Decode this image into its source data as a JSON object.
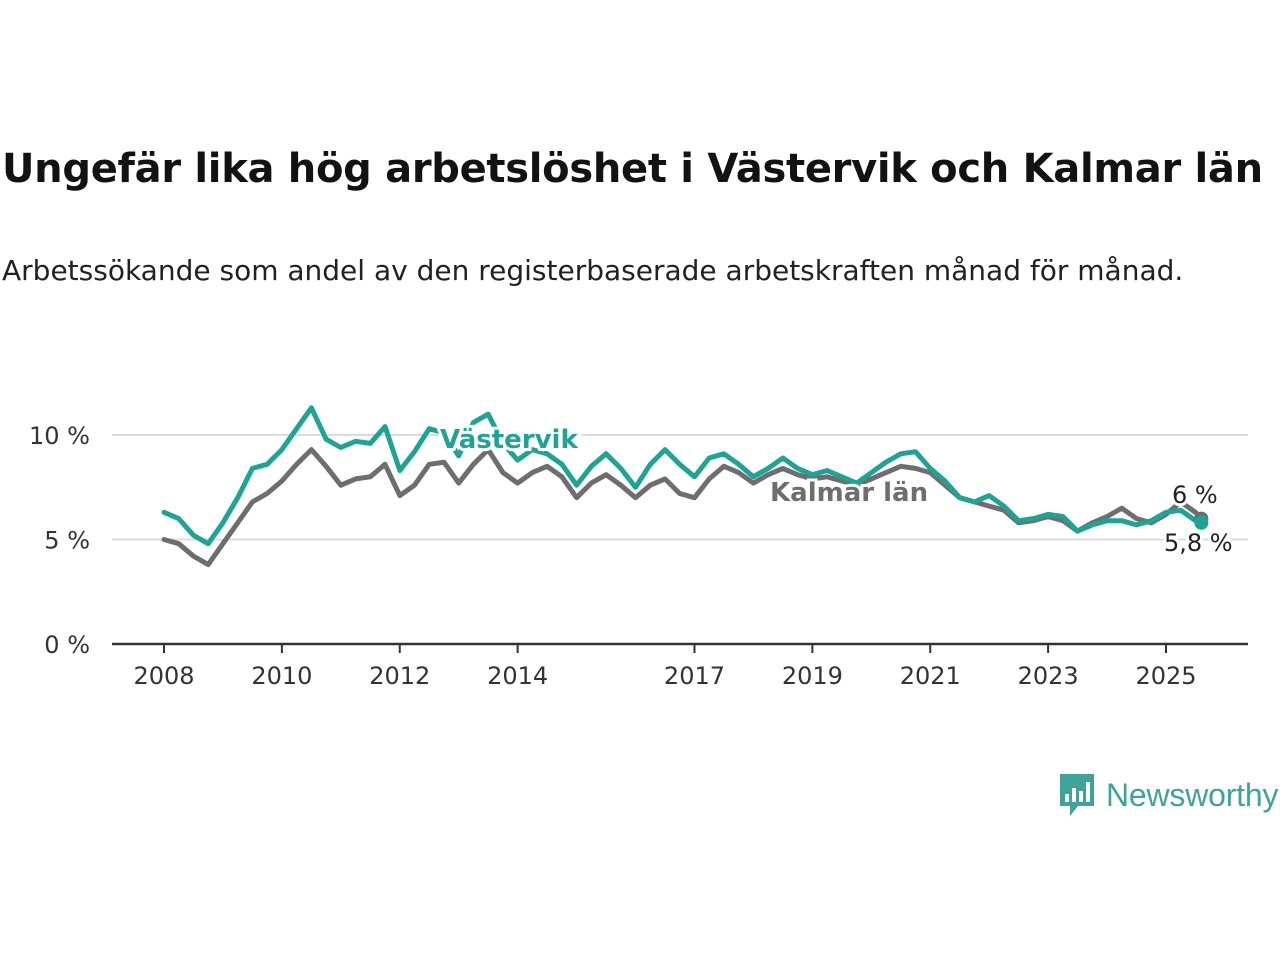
{
  "chart_data": {
    "type": "line",
    "title": "Ungefär lika hög arbetslöshet i Västervik och Kalmar län",
    "subtitle": "Arbetssökande som andel av den registerbaserade arbetskraften månad för månad.",
    "ylim": [
      0,
      12.5
    ],
    "yticks": [
      0,
      5,
      10
    ],
    "ytick_labels": [
      "0 %",
      "5 %",
      "10 %"
    ],
    "xticks": [
      2008,
      2010,
      2012,
      2014,
      2017,
      2019,
      2021,
      2023,
      2025
    ],
    "xtick_labels": [
      "2008",
      "2010",
      "2012",
      "2014",
      "2017",
      "2019",
      "2021",
      "2023",
      "2025"
    ],
    "grid": true,
    "series": [
      {
        "name": "Kalmar län",
        "color": "#6e6e6e",
        "end_label": "6 %",
        "points": [
          [
            2008.0,
            5.0
          ],
          [
            2008.25,
            4.8
          ],
          [
            2008.5,
            4.2
          ],
          [
            2008.75,
            3.8
          ],
          [
            2009.0,
            4.8
          ],
          [
            2009.25,
            5.8
          ],
          [
            2009.5,
            6.8
          ],
          [
            2009.75,
            7.2
          ],
          [
            2010.0,
            7.8
          ],
          [
            2010.25,
            8.6
          ],
          [
            2010.5,
            9.3
          ],
          [
            2010.75,
            8.5
          ],
          [
            2011.0,
            7.6
          ],
          [
            2011.25,
            7.9
          ],
          [
            2011.5,
            8.0
          ],
          [
            2011.75,
            8.6
          ],
          [
            2012.0,
            7.1
          ],
          [
            2012.25,
            7.6
          ],
          [
            2012.5,
            8.6
          ],
          [
            2012.75,
            8.7
          ],
          [
            2013.0,
            7.7
          ],
          [
            2013.25,
            8.6
          ],
          [
            2013.5,
            9.3
          ],
          [
            2013.75,
            8.2
          ],
          [
            2014.0,
            7.7
          ],
          [
            2014.25,
            8.2
          ],
          [
            2014.5,
            8.5
          ],
          [
            2014.75,
            8.0
          ],
          [
            2015.0,
            7.0
          ],
          [
            2015.25,
            7.7
          ],
          [
            2015.5,
            8.1
          ],
          [
            2015.75,
            7.6
          ],
          [
            2016.0,
            7.0
          ],
          [
            2016.25,
            7.6
          ],
          [
            2016.5,
            7.9
          ],
          [
            2016.75,
            7.2
          ],
          [
            2017.0,
            7.0
          ],
          [
            2017.25,
            7.9
          ],
          [
            2017.5,
            8.5
          ],
          [
            2017.75,
            8.2
          ],
          [
            2018.0,
            7.7
          ],
          [
            2018.25,
            8.1
          ],
          [
            2018.5,
            8.4
          ],
          [
            2018.75,
            8.1
          ],
          [
            2019.0,
            7.9
          ],
          [
            2019.25,
            8.0
          ],
          [
            2019.5,
            7.8
          ],
          [
            2019.75,
            7.6
          ],
          [
            2020.0,
            7.9
          ],
          [
            2020.25,
            8.2
          ],
          [
            2020.5,
            8.5
          ],
          [
            2020.75,
            8.4
          ],
          [
            2021.0,
            8.2
          ],
          [
            2021.25,
            7.6
          ],
          [
            2021.5,
            7.0
          ],
          [
            2021.75,
            6.8
          ],
          [
            2022.0,
            6.6
          ],
          [
            2022.25,
            6.4
          ],
          [
            2022.5,
            5.8
          ],
          [
            2022.75,
            5.9
          ],
          [
            2023.0,
            6.1
          ],
          [
            2023.25,
            5.9
          ],
          [
            2023.5,
            5.4
          ],
          [
            2023.75,
            5.8
          ],
          [
            2024.0,
            6.1
          ],
          [
            2024.25,
            6.5
          ],
          [
            2024.5,
            6.0
          ],
          [
            2024.75,
            5.8
          ],
          [
            2025.0,
            6.2
          ],
          [
            2025.25,
            6.8
          ],
          [
            2025.5,
            6.3
          ],
          [
            2025.6,
            6.0
          ]
        ]
      },
      {
        "name": "Västervik",
        "color": "#1ea394",
        "end_label": "5,8 %",
        "points": [
          [
            2008.0,
            6.3
          ],
          [
            2008.25,
            6.0
          ],
          [
            2008.5,
            5.2
          ],
          [
            2008.75,
            4.8
          ],
          [
            2009.0,
            5.8
          ],
          [
            2009.25,
            7.0
          ],
          [
            2009.5,
            8.4
          ],
          [
            2009.75,
            8.6
          ],
          [
            2010.0,
            9.3
          ],
          [
            2010.25,
            10.3
          ],
          [
            2010.5,
            11.3
          ],
          [
            2010.75,
            9.8
          ],
          [
            2011.0,
            9.4
          ],
          [
            2011.25,
            9.7
          ],
          [
            2011.5,
            9.6
          ],
          [
            2011.75,
            10.4
          ],
          [
            2012.0,
            8.3
          ],
          [
            2012.25,
            9.2
          ],
          [
            2012.5,
            10.3
          ],
          [
            2012.75,
            10.1
          ],
          [
            2013.0,
            9.0
          ],
          [
            2013.25,
            10.6
          ],
          [
            2013.5,
            11.0
          ],
          [
            2013.75,
            9.6
          ],
          [
            2014.0,
            8.8
          ],
          [
            2014.25,
            9.3
          ],
          [
            2014.5,
            9.1
          ],
          [
            2014.75,
            8.6
          ],
          [
            2015.0,
            7.6
          ],
          [
            2015.25,
            8.5
          ],
          [
            2015.5,
            9.1
          ],
          [
            2015.75,
            8.4
          ],
          [
            2016.0,
            7.5
          ],
          [
            2016.25,
            8.6
          ],
          [
            2016.5,
            9.3
          ],
          [
            2016.75,
            8.6
          ],
          [
            2017.0,
            8.0
          ],
          [
            2017.25,
            8.9
          ],
          [
            2017.5,
            9.1
          ],
          [
            2017.75,
            8.6
          ],
          [
            2018.0,
            8.0
          ],
          [
            2018.25,
            8.4
          ],
          [
            2018.5,
            8.9
          ],
          [
            2018.75,
            8.4
          ],
          [
            2019.0,
            8.1
          ],
          [
            2019.25,
            8.3
          ],
          [
            2019.5,
            8.0
          ],
          [
            2019.75,
            7.7
          ],
          [
            2020.0,
            8.2
          ],
          [
            2020.25,
            8.7
          ],
          [
            2020.5,
            9.1
          ],
          [
            2020.75,
            9.2
          ],
          [
            2021.0,
            8.4
          ],
          [
            2021.25,
            7.8
          ],
          [
            2021.5,
            7.0
          ],
          [
            2021.75,
            6.8
          ],
          [
            2022.0,
            7.1
          ],
          [
            2022.25,
            6.6
          ],
          [
            2022.5,
            5.9
          ],
          [
            2022.75,
            6.0
          ],
          [
            2023.0,
            6.2
          ],
          [
            2023.25,
            6.1
          ],
          [
            2023.5,
            5.4
          ],
          [
            2023.75,
            5.7
          ],
          [
            2024.0,
            5.9
          ],
          [
            2024.25,
            5.9
          ],
          [
            2024.5,
            5.7
          ],
          [
            2024.75,
            5.9
          ],
          [
            2025.0,
            6.3
          ],
          [
            2025.25,
            6.4
          ],
          [
            2025.5,
            5.9
          ],
          [
            2025.6,
            5.8
          ]
        ]
      }
    ]
  },
  "brand": {
    "name": "Newsworthy",
    "color": "#3fa39a"
  }
}
